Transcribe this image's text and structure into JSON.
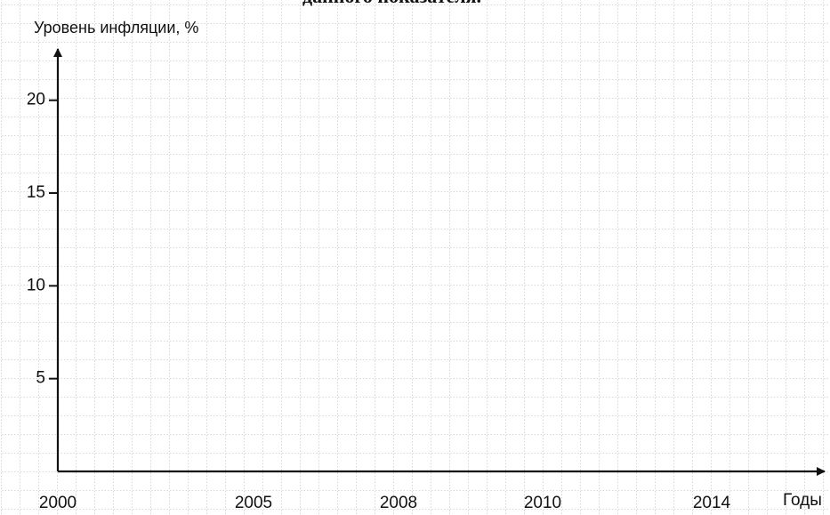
{
  "chart_data": {
    "type": "line",
    "title": "данного показателя.",
    "ylabel": "Уровень инфляции, %",
    "xlabel": "Годы",
    "categories": [
      "2000",
      "2005",
      "2008",
      "2010",
      "2014"
    ],
    "series": [],
    "ylim": [
      0,
      22
    ],
    "yticks": [
      5,
      10,
      15,
      20
    ],
    "grid": true
  }
}
